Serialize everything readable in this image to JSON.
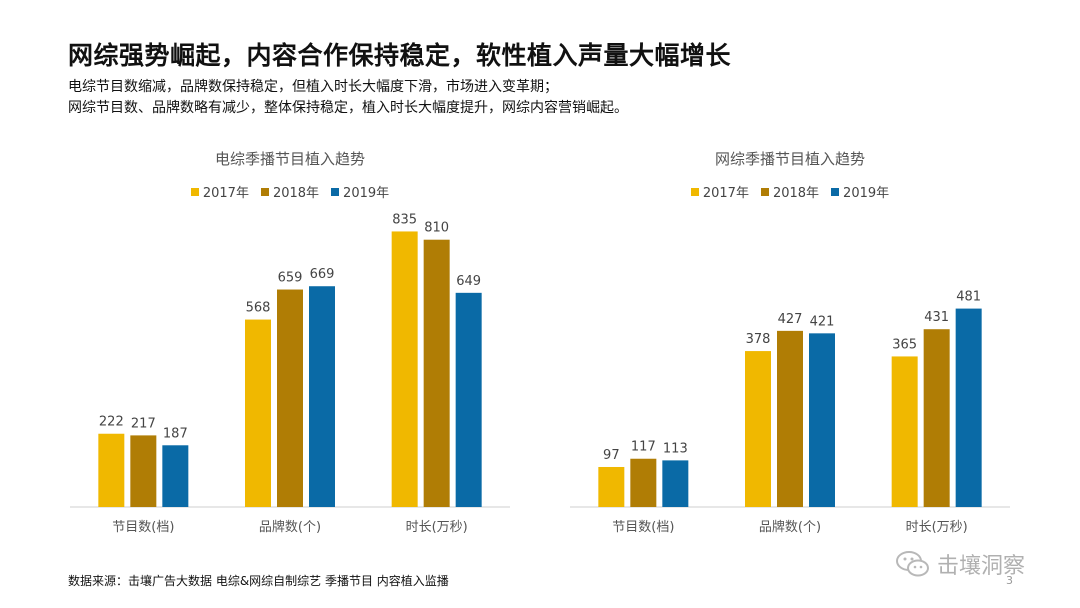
{
  "header": {
    "title": "网综强势崛起，内容合作保持稳定，软性植入声量大幅增长",
    "lines": [
      "电综节目数缩减，品牌数保持稳定，但植入时长大幅度下滑，市场进入变革期；",
      "网综节目数、品牌数略有减少，整体保持稳定，植入时长大幅度提升，网综内容营销崛起。"
    ]
  },
  "colors": {
    "2017": "#F0B800",
    "2018": "#B07D05",
    "2019": "#0A6AA6"
  },
  "chart_data": [
    {
      "type": "bar",
      "title": "电综季播节目植入趋势",
      "categories": [
        "节目数(档)",
        "品牌数(个)",
        "时长(万秒)"
      ],
      "series": [
        {
          "name": "2017年",
          "values": [
            222,
            568,
            835
          ]
        },
        {
          "name": "2018年",
          "values": [
            217,
            659,
            810
          ]
        },
        {
          "name": "2019年",
          "values": [
            187,
            669,
            649
          ]
        }
      ],
      "ylim": [
        0,
        900
      ],
      "grid": false,
      "legend": "top"
    },
    {
      "type": "bar",
      "title": "网综季播节目植入趋势",
      "categories": [
        "节目数(档)",
        "品牌数(个)",
        "时长(万秒)"
      ],
      "series": [
        {
          "name": "2017年",
          "values": [
            97,
            378,
            365
          ]
        },
        {
          "name": "2018年",
          "values": [
            117,
            427,
            431
          ]
        },
        {
          "name": "2019年",
          "values": [
            113,
            421,
            481
          ]
        }
      ],
      "ylim": [
        0,
        720
      ],
      "grid": false,
      "legend": "top"
    }
  ],
  "footer": {
    "source": "数据来源：击壤广告大数据 电综&网综自制综艺 季播节目 内容植入监播",
    "watermark": "击壤洞察",
    "page": "3"
  }
}
